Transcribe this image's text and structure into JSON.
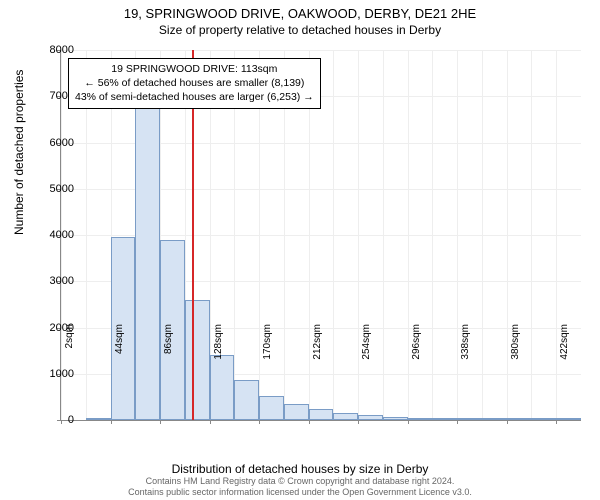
{
  "title": {
    "main": "19, SPRINGWOOD DRIVE, OAKWOOD, DERBY, DE21 2HE",
    "sub": "Size of property relative to detached houses in Derby"
  },
  "chart": {
    "type": "histogram",
    "ylabel": "Number of detached properties",
    "xlabel": "Distribution of detached houses by size in Derby",
    "ylim": [
      0,
      8000
    ],
    "ytick_step": 1000,
    "background_color": "#ffffff",
    "grid_color": "#eeeeee",
    "axis_color": "#888888",
    "bar_fill": "#d6e3f3",
    "bar_border": "#7a9cc6",
    "marker_color": "#d62728",
    "marker_x": 113,
    "x_start": 2,
    "x_step": 21,
    "x_bins": 21,
    "x_label_step": 2,
    "x_unit": "sqm",
    "values": [
      0,
      20,
      3950,
      6800,
      3900,
      2600,
      1400,
      870,
      520,
      350,
      230,
      150,
      100,
      70,
      50,
      35,
      25,
      20,
      15,
      10,
      8
    ],
    "label_fontsize": 12,
    "tick_fontsize": 11
  },
  "annotation": {
    "line1": "19 SPRINGWOOD DRIVE: 113sqm",
    "line2": "← 56% of detached houses are smaller (8,139)",
    "line3": "43% of semi-detached houses are larger (6,253) →"
  },
  "footer": {
    "line1": "Contains HM Land Registry data © Crown copyright and database right 2024.",
    "line2": "Contains public sector information licensed under the Open Government Licence v3.0."
  }
}
